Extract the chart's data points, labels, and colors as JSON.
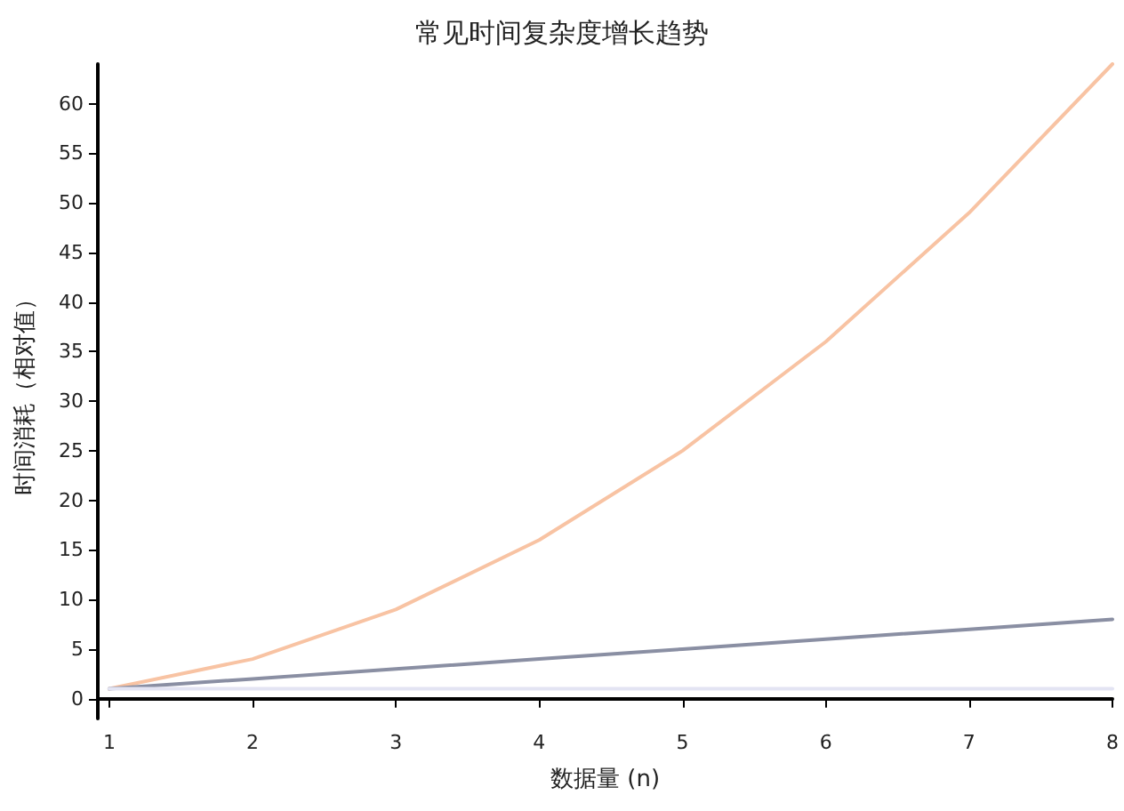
{
  "chart_data": {
    "type": "line",
    "title": "常见时间复杂度增长趋势",
    "xlabel": "数据量 (n)",
    "ylabel": "时间消耗（相对值）",
    "x": [
      1,
      2,
      3,
      4,
      5,
      6,
      7,
      8
    ],
    "series": [
      {
        "color": "#f8c3a3",
        "values": [
          1,
          4,
          9,
          16,
          25,
          36,
          49,
          64
        ]
      },
      {
        "color": "#8a8fa3",
        "values": [
          1,
          2,
          3,
          4,
          5,
          6,
          7,
          8
        ]
      },
      {
        "color": "#e3e4f3",
        "values": [
          1,
          1,
          1,
          1,
          1,
          1,
          1,
          1
        ]
      }
    ],
    "xlim": [
      0.92,
      8
    ],
    "ylim": [
      -2,
      64
    ],
    "xticks": [
      1,
      2,
      3,
      4,
      5,
      6,
      7,
      8
    ],
    "yticks": [
      0,
      5,
      10,
      15,
      20,
      25,
      30,
      35,
      40,
      45,
      50,
      55,
      60
    ],
    "grid": false,
    "marker": "none",
    "line_style": "solid"
  }
}
